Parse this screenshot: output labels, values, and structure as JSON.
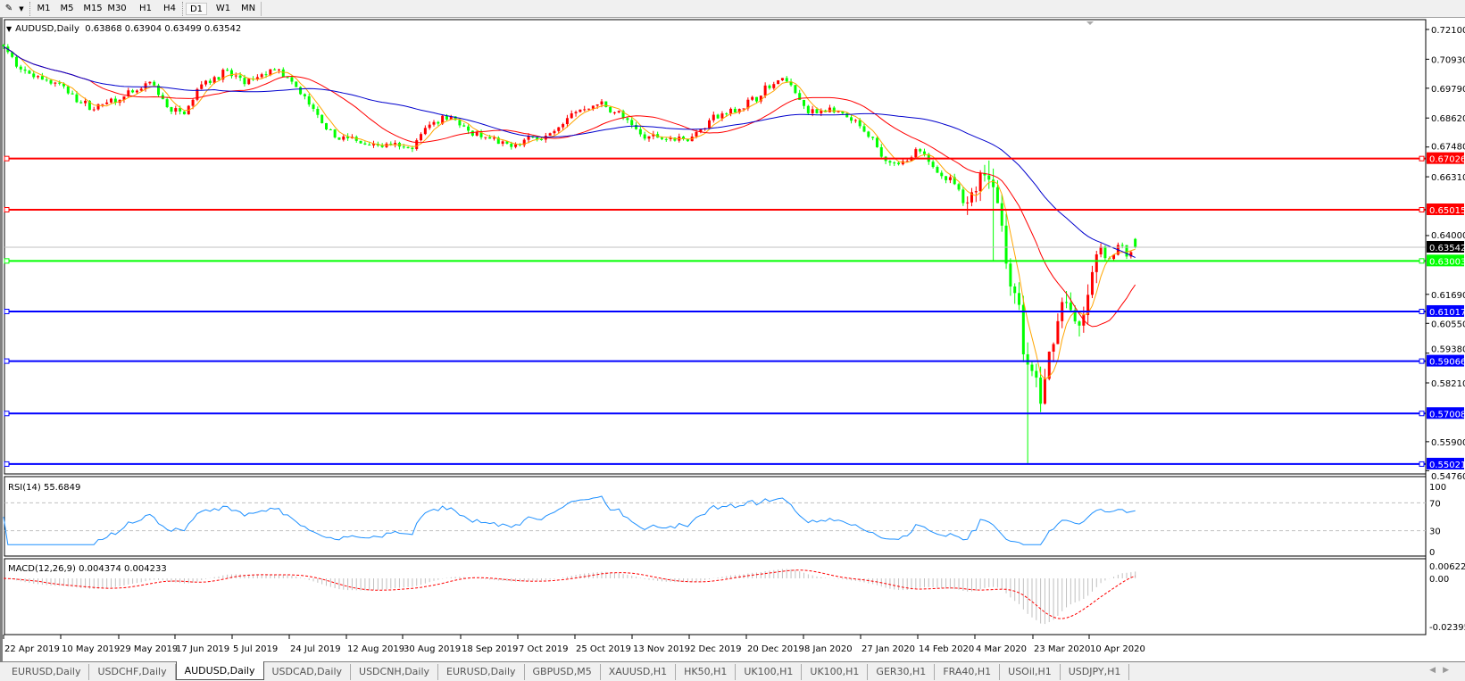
{
  "toolbar": {
    "timeframes": [
      "M1",
      "M5",
      "M15",
      "M30",
      "H1",
      "H4",
      "D1",
      "W1",
      "MN"
    ],
    "active": "D1"
  },
  "header": {
    "symbol": "AUDUSD,Daily",
    "open": "0.63868",
    "high": "0.63904",
    "low": "0.63499",
    "close": "0.63542"
  },
  "price_axis": {
    "ticks": [
      "0.72100",
      "0.70930",
      "0.69790",
      "0.68620",
      "0.67480",
      "0.66310",
      "0.64000",
      "0.61690",
      "0.60550",
      "0.59380",
      "0.58210",
      "0.55900",
      "0.54760"
    ]
  },
  "current_price": {
    "value": "0.63542",
    "color": "#000000"
  },
  "levels": [
    {
      "value": "0.67026",
      "color": "#ff0000"
    },
    {
      "value": "0.65015",
      "color": "#ff0000"
    },
    {
      "value": "0.63003",
      "color": "#00ff00"
    },
    {
      "value": "0.61017",
      "color": "#0000ff"
    },
    {
      "value": "0.59066",
      "color": "#0000ff"
    },
    {
      "value": "0.57008",
      "color": "#0000ff"
    },
    {
      "value": "0.55021",
      "color": "#0000ff"
    }
  ],
  "colors": {
    "bull": "#ff0000",
    "bear": "#00ff00",
    "ma_fast": "#ffa500",
    "ma_mid": "#ff0000",
    "ma_slow": "#0000cd",
    "rsi": "#1e90ff",
    "macd_hist": "#c0c0c0",
    "macd_signal": "#ff0000"
  },
  "rsi": {
    "label": "RSI(14) 55.6849",
    "ticks": [
      "100",
      "70",
      "30",
      "0"
    ]
  },
  "macd": {
    "label": "MACD(12,26,9) 0.004374 0.004233",
    "ticks": [
      "0.00622",
      "0.00",
      "-0.023955"
    ]
  },
  "date_axis": [
    "22 Apr 2019",
    "10 May 2019",
    "29 May 2019",
    "17 Jun 2019",
    "5 Jul 2019",
    "24 Jul 2019",
    "12 Aug 2019",
    "30 Aug 2019",
    "18 Sep 2019",
    "7 Oct 2019",
    "25 Oct 2019",
    "13 Nov 2019",
    "2 Dec 2019",
    "20 Dec 2019",
    "8 Jan 2020",
    "27 Jan 2020",
    "14 Feb 2020",
    "4 Mar 2020",
    "23 Mar 2020",
    "10 Apr 2020"
  ],
  "tabs": [
    "EURUSD,Daily",
    "USDCHF,Daily",
    "AUDUSD,Daily",
    "USDCAD,Daily",
    "USDCNH,Daily",
    "EURUSD,Daily",
    "GBPUSD,M5",
    "XAUUSD,H1",
    "HK50,H1",
    "UK100,H1",
    "UK100,H1",
    "GER30,H1",
    "FRA40,H1",
    "USOil,H1",
    "USDJPY,H1"
  ],
  "active_tab": 2
}
